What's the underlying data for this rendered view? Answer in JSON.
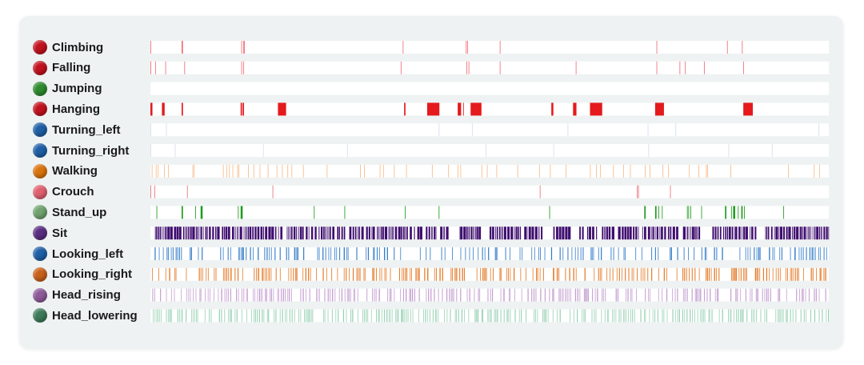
{
  "chart_data": {
    "type": "event-timeline",
    "categories": [
      "Climbing",
      "Falling",
      "Jumping",
      "Hanging",
      "Turning_left",
      "Turning_right",
      "Walking",
      "Crouch",
      "Stand_up",
      "Sit",
      "Looking_left",
      "Looking_right",
      "Head_rising",
      "Head_lowering"
    ],
    "x_range": [
      0,
      1000
    ],
    "series": [
      {
        "name": "Climbing",
        "color": "#c1121f",
        "mark_color": "#f25c66",
        "mark_opacity": 0.9,
        "events": [
          [
            0,
            1
          ],
          [
            46,
            48
          ],
          [
            134,
            135
          ],
          [
            137,
            139
          ],
          [
            372,
            373
          ],
          [
            465,
            466
          ],
          [
            467,
            468
          ],
          [
            515,
            516
          ],
          [
            746,
            747
          ],
          [
            850,
            851
          ],
          [
            872,
            873
          ]
        ]
      },
      {
        "name": "Falling",
        "color": "#c1121f",
        "mark_color": "#f25c66",
        "mark_opacity": 0.9,
        "events": [
          [
            0,
            1
          ],
          [
            7,
            8
          ],
          [
            22,
            23
          ],
          [
            50,
            51
          ],
          [
            134,
            135
          ],
          [
            137,
            138
          ],
          [
            369,
            370
          ],
          [
            466,
            467
          ],
          [
            469,
            470
          ],
          [
            515,
            516
          ],
          [
            627,
            628
          ],
          [
            746,
            747
          ],
          [
            780,
            781
          ],
          [
            788,
            789
          ],
          [
            816,
            817
          ],
          [
            874,
            875
          ]
        ]
      },
      {
        "name": "Jumping",
        "color": "#2e8b2e",
        "mark_color": "#2ca02c",
        "mark_opacity": 0.9,
        "events": []
      },
      {
        "name": "Hanging",
        "color": "#c1121f",
        "mark_color": "#e41a1c",
        "mark_opacity": 1,
        "events": [
          [
            0,
            3
          ],
          [
            17,
            21
          ],
          [
            46,
            48
          ],
          [
            133,
            135
          ],
          [
            136,
            138
          ],
          [
            188,
            200
          ],
          [
            374,
            376
          ],
          [
            408,
            426
          ],
          [
            453,
            458
          ],
          [
            461,
            462
          ],
          [
            472,
            488
          ],
          [
            591,
            594
          ],
          [
            623,
            628
          ],
          [
            648,
            666
          ],
          [
            744,
            757
          ],
          [
            874,
            888
          ]
        ]
      },
      {
        "name": "Turning_left",
        "color": "#1f5fa6",
        "mark_color": "#c9d6e8",
        "mark_opacity": 0.8,
        "events": [
          [
            0,
            1
          ],
          [
            23,
            24
          ],
          [
            425,
            426
          ],
          [
            474,
            475
          ],
          [
            615,
            616
          ],
          [
            733,
            734
          ],
          [
            774,
            775
          ],
          [
            985,
            986
          ]
        ]
      },
      {
        "name": "Turning_right",
        "color": "#1f5fa6",
        "mark_color": "#c9d6e8",
        "mark_opacity": 0.8,
        "events": [
          [
            0,
            1
          ],
          [
            36,
            37
          ],
          [
            166,
            167
          ],
          [
            290,
            291
          ],
          [
            494,
            495
          ],
          [
            594,
            595
          ],
          [
            734,
            735
          ],
          [
            852,
            853
          ],
          [
            916,
            917
          ]
        ]
      },
      {
        "name": "Walking",
        "color": "#d9730d",
        "mark_color": "#f5b27a",
        "mark_opacity": 0.9,
        "events": [
          [
            2,
            3
          ],
          [
            8,
            9
          ],
          [
            11,
            12
          ],
          [
            20,
            21
          ],
          [
            26,
            27
          ],
          [
            62,
            63
          ],
          [
            64,
            65
          ],
          [
            107,
            108
          ],
          [
            112,
            113
          ],
          [
            116,
            117
          ],
          [
            121,
            122
          ],
          [
            128,
            129
          ],
          [
            130,
            131
          ],
          [
            144,
            145
          ],
          [
            152,
            153
          ],
          [
            161,
            162
          ],
          [
            173,
            174
          ],
          [
            186,
            187
          ],
          [
            194,
            195
          ],
          [
            202,
            203
          ],
          [
            208,
            209
          ],
          [
            225,
            226
          ],
          [
            260,
            261
          ],
          [
            309,
            310
          ],
          [
            315,
            316
          ],
          [
            338,
            339
          ],
          [
            343,
            344
          ],
          [
            359,
            360
          ],
          [
            377,
            378
          ],
          [
            415,
            416
          ],
          [
            439,
            440
          ],
          [
            453,
            454
          ],
          [
            457,
            458
          ],
          [
            488,
            489
          ],
          [
            496,
            497
          ],
          [
            510,
            511
          ],
          [
            541,
            542
          ],
          [
            573,
            574
          ],
          [
            589,
            590
          ],
          [
            612,
            613
          ],
          [
            648,
            649
          ],
          [
            657,
            658
          ],
          [
            663,
            664
          ],
          [
            682,
            683
          ],
          [
            697,
            698
          ],
          [
            707,
            708
          ],
          [
            729,
            730
          ],
          [
            736,
            737
          ],
          [
            755,
            756
          ],
          [
            763,
            764
          ],
          [
            794,
            795
          ],
          [
            808,
            809
          ],
          [
            819,
            820
          ],
          [
            821,
            822
          ],
          [
            855,
            856
          ],
          [
            940,
            941
          ],
          [
            978,
            979
          ],
          [
            986,
            987
          ]
        ]
      },
      {
        "name": "Crouch",
        "color": "#e0606f",
        "mark_color": "#e8606e",
        "mark_opacity": 0.9,
        "events": [
          [
            0,
            1
          ],
          [
            6,
            7
          ],
          [
            54,
            55
          ],
          [
            180,
            181
          ],
          [
            574,
            575
          ],
          [
            717,
            718
          ],
          [
            719,
            720
          ],
          [
            766,
            767
          ]
        ]
      },
      {
        "name": "Stand_up",
        "color": "#6fa36f",
        "mark_color": "#1f9a1f",
        "mark_opacity": 1,
        "events": [
          [
            9,
            10
          ],
          [
            46,
            48
          ],
          [
            66,
            67
          ],
          [
            74,
            77
          ],
          [
            129,
            130
          ],
          [
            133,
            136
          ],
          [
            241,
            242
          ],
          [
            286,
            287
          ],
          [
            375,
            376
          ],
          [
            425,
            426
          ],
          [
            588,
            589
          ],
          [
            728,
            730
          ],
          [
            744,
            746
          ],
          [
            749,
            750
          ],
          [
            754,
            755
          ],
          [
            791,
            792
          ],
          [
            793,
            794
          ],
          [
            796,
            797
          ],
          [
            812,
            813
          ],
          [
            847,
            849
          ],
          [
            856,
            857
          ],
          [
            859,
            862
          ],
          [
            866,
            867
          ],
          [
            871,
            873
          ],
          [
            875,
            876
          ],
          [
            933,
            934
          ]
        ]
      }
    ]
  },
  "legend": [
    {
      "label": "Climbing",
      "color": "#c1121f"
    },
    {
      "label": "Falling",
      "color": "#c1121f"
    },
    {
      "label": "Jumping",
      "color": "#2e8b2e"
    },
    {
      "label": "Hanging",
      "color": "#c1121f"
    },
    {
      "label": "Turning_left",
      "color": "#1f5fa6"
    },
    {
      "label": "Turning_right",
      "color": "#1f5fa6"
    },
    {
      "label": "Walking",
      "color": "#d9730d"
    },
    {
      "label": "Crouch",
      "color": "#e0606f"
    },
    {
      "label": "Stand_up",
      "color": "#6fa36f"
    },
    {
      "label": "Sit",
      "color": "#5a2d82"
    },
    {
      "label": "Looking_left",
      "color": "#1f5fa6"
    },
    {
      "label": "Looking_right",
      "color": "#c8601a"
    },
    {
      "label": "Head_rising",
      "color": "#8e5a9a"
    },
    {
      "label": "Head_lowering",
      "color": "#3d7a5a"
    }
  ],
  "dense_series": [
    {
      "name": "Sit",
      "mark_color": "#3f0e6f",
      "mark_opacity": 1,
      "density": 0.86,
      "seed": 11,
      "gaps": [
        [
          0,
          6
        ],
        [
          117,
          120
        ],
        [
          192,
          201
        ],
        [
          400,
          405
        ],
        [
          422,
          427
        ],
        [
          436,
          455
        ],
        [
          488,
          498
        ],
        [
          578,
          593
        ],
        [
          618,
          631
        ],
        [
          659,
          665
        ],
        [
          682,
          688
        ],
        [
          777,
          784
        ],
        [
          812,
          828
        ],
        [
          894,
          906
        ]
      ]
    },
    {
      "name": "Looking_left",
      "mark_color": "#1f6fc1",
      "mark_opacity": 0.9,
      "density": 0.22,
      "seed": 23,
      "gaps": [
        [
          0,
          2
        ]
      ]
    },
    {
      "name": "Looking_right",
      "mark_color": "#e06a10",
      "mark_opacity": 0.9,
      "density": 0.28,
      "seed": 37,
      "gaps": [
        [
          0,
          2
        ]
      ]
    },
    {
      "name": "Head_rising",
      "mark_color": "#b07ec0",
      "mark_opacity": 0.75,
      "density": 0.33,
      "seed": 41,
      "gaps": [
        [
          0,
          2
        ]
      ]
    },
    {
      "name": "Head_lowering",
      "mark_color": "#6fbf95",
      "mark_opacity": 0.7,
      "density": 0.36,
      "seed": 53,
      "gaps": [
        [
          0,
          2
        ]
      ]
    }
  ]
}
